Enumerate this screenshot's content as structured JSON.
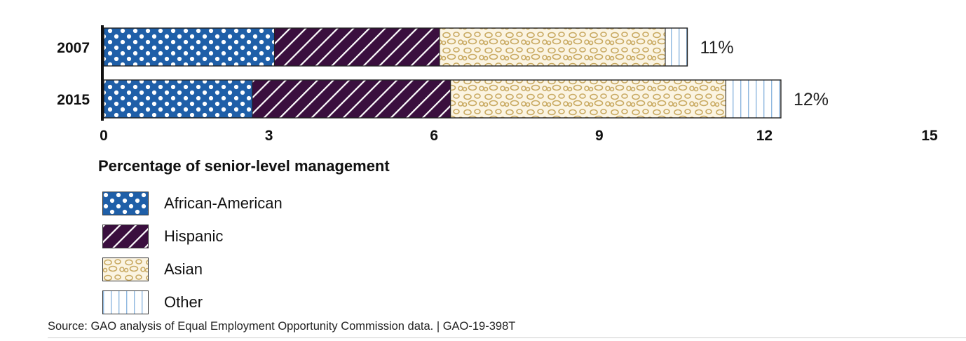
{
  "chart_data": {
    "type": "bar",
    "orientation": "horizontal",
    "stacked": true,
    "categories": [
      "2007",
      "2015"
    ],
    "series": [
      {
        "name": "African-American",
        "values": [
          3.1,
          2.7
        ],
        "color": "#1f5fa8",
        "pattern": "dots"
      },
      {
        "name": "Hispanic",
        "values": [
          3.0,
          3.6
        ],
        "color": "#3a0f3e",
        "pattern": "diagonal-stripes"
      },
      {
        "name": "Asian",
        "values": [
          4.1,
          5.0
        ],
        "color": "#c9aa62",
        "pattern": "pebbles"
      },
      {
        "name": "Other",
        "values": [
          0.4,
          1.0
        ],
        "color": "#cfe3f4",
        "pattern": "vertical-stripes"
      }
    ],
    "totals": [
      "11%",
      "12%"
    ],
    "xlim": [
      0,
      15
    ],
    "xticks": [
      0,
      3,
      6,
      9,
      12,
      15
    ],
    "xtick_labels": [
      "0",
      "3",
      "6",
      "9",
      "12",
      "15"
    ],
    "xlabel": "Percentage of senior-level management",
    "ylabel": "",
    "title": "",
    "grid": false,
    "legend_position": "bottom-left"
  },
  "source_note": "Source: GAO analysis of Equal Employment Opportunity Commission data.  |  GAO-19-398T"
}
